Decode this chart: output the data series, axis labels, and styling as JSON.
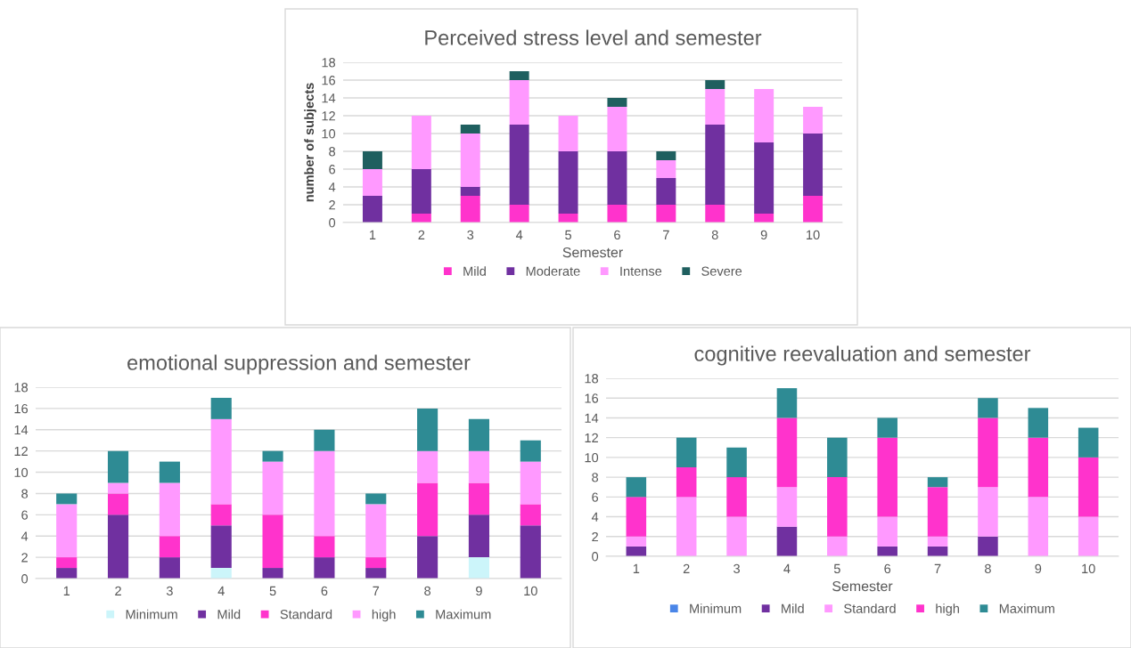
{
  "chart_data": [
    {
      "type": "bar",
      "title": "Perceived stress level and semester",
      "xlabel": "Semester",
      "ylabel": "number of subjects",
      "stacked": true,
      "categories": [
        "1",
        "2",
        "3",
        "4",
        "5",
        "6",
        "7",
        "8",
        "9",
        "10"
      ],
      "ylim": [
        0,
        18
      ],
      "yticks": [
        0,
        2,
        4,
        6,
        8,
        10,
        12,
        14,
        16,
        18
      ],
      "grid": "y",
      "legend": "bottom",
      "series": [
        {
          "name": "Mild",
          "color": "#ff33cc",
          "values": [
            0,
            1,
            3,
            2,
            1,
            2,
            2,
            2,
            1,
            3
          ]
        },
        {
          "name": "Moderate",
          "color": "#7030a0",
          "values": [
            3,
            5,
            1,
            9,
            7,
            6,
            3,
            9,
            8,
            7
          ]
        },
        {
          "name": "Intense",
          "color": "#ff99ff",
          "values": [
            3,
            6,
            6,
            5,
            4,
            5,
            2,
            4,
            6,
            3
          ]
        },
        {
          "name": "Severe",
          "color": "#1f5f5f",
          "values": [
            2,
            0,
            1,
            1,
            0,
            1,
            1,
            1,
            0,
            0
          ]
        }
      ]
    },
    {
      "type": "bar",
      "title": "emotional suppression and semester",
      "stacked": true,
      "categories": [
        "1",
        "2",
        "3",
        "4",
        "5",
        "6",
        "7",
        "8",
        "9",
        "10"
      ],
      "ylim": [
        0,
        18
      ],
      "yticks": [
        0,
        2,
        4,
        6,
        8,
        10,
        12,
        14,
        16,
        18
      ],
      "grid": "y",
      "legend": "bottom",
      "series": [
        {
          "name": "Minimum",
          "color": "#ccf5fa",
          "values": [
            0,
            0,
            0,
            1,
            0,
            0,
            0,
            0,
            2,
            0
          ]
        },
        {
          "name": "Mild",
          "color": "#7030a0",
          "values": [
            1,
            6,
            2,
            4,
            1,
            2,
            1,
            4,
            4,
            5
          ]
        },
        {
          "name": "Standard",
          "color": "#ff33cc",
          "values": [
            1,
            2,
            2,
            2,
            5,
            2,
            1,
            5,
            3,
            2
          ]
        },
        {
          "name": "high",
          "color": "#ff99ff",
          "values": [
            5,
            1,
            5,
            8,
            5,
            8,
            5,
            3,
            3,
            4
          ]
        },
        {
          "name": "Maximum",
          "color": "#2e8b94",
          "values": [
            1,
            3,
            2,
            2,
            1,
            2,
            1,
            4,
            3,
            2
          ]
        }
      ]
    },
    {
      "type": "bar",
      "title": "cognitive reevaluation and semester",
      "xlabel": "Semester",
      "stacked": true,
      "categories": [
        "1",
        "2",
        "3",
        "4",
        "5",
        "6",
        "7",
        "8",
        "9",
        "10"
      ],
      "ylim": [
        0,
        18
      ],
      "yticks": [
        0,
        2,
        4,
        6,
        8,
        10,
        12,
        14,
        16,
        18
      ],
      "grid": "y",
      "legend": "bottom",
      "series": [
        {
          "name": "Minimum",
          "color": "#4a86e8",
          "values": [
            0,
            0,
            0,
            0,
            0,
            0,
            0,
            0,
            0,
            0
          ]
        },
        {
          "name": "Mild",
          "color": "#7030a0",
          "values": [
            1,
            0,
            0,
            3,
            0,
            1,
            1,
            2,
            0,
            0
          ]
        },
        {
          "name": "Standard",
          "color": "#ff99ff",
          "values": [
            1,
            6,
            4,
            4,
            2,
            3,
            1,
            5,
            6,
            4
          ]
        },
        {
          "name": "high",
          "color": "#ff33cc",
          "values": [
            4,
            3,
            4,
            7,
            6,
            8,
            5,
            7,
            6,
            6
          ]
        },
        {
          "name": "Maximum",
          "color": "#2e8b94",
          "values": [
            2,
            3,
            3,
            3,
            4,
            2,
            1,
            2,
            3,
            3
          ]
        }
      ]
    }
  ]
}
